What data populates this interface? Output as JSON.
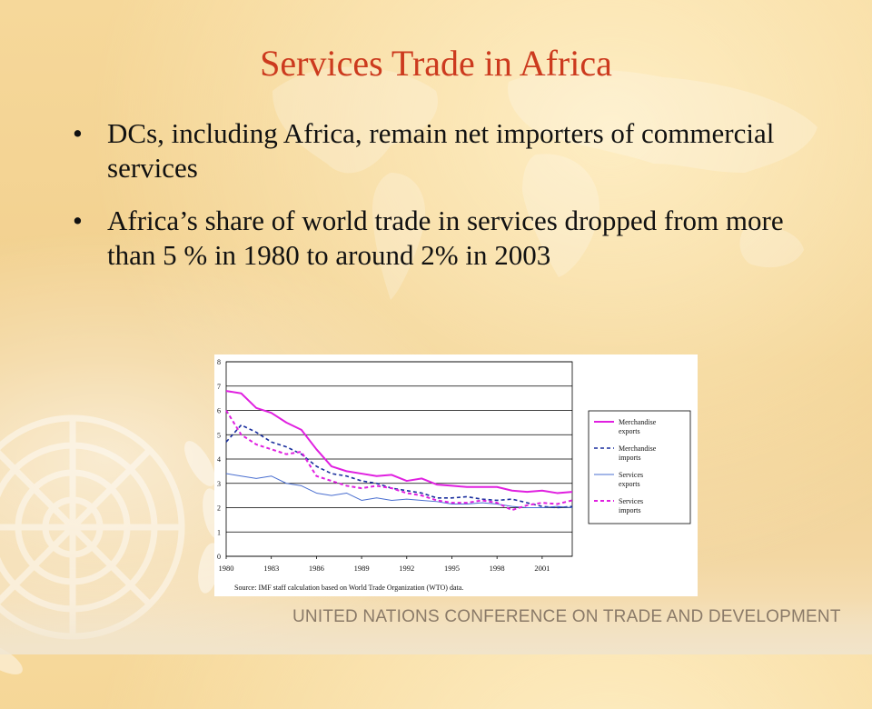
{
  "slide": {
    "title": "Services Trade in Africa",
    "bullets": [
      "DCs, including Africa, remain net importers of commercial services",
      "Africa’s share of world trade in services dropped from more than 5 % in 1980 to around 2% in 2003"
    ],
    "bullet_glyph": "•",
    "footer": "UNITED NATIONS CONFERENCE ON TRADE AND DEVELOPMENT"
  },
  "chart_data": {
    "type": "line",
    "title": "",
    "xlabel": "",
    "ylabel": "",
    "source": "Source: IMF staff calculation based on World Trade Organization (WTO) data.",
    "x": [
      1980,
      1981,
      1982,
      1983,
      1984,
      1985,
      1986,
      1987,
      1988,
      1989,
      1990,
      1991,
      1992,
      1993,
      1994,
      1995,
      1996,
      1997,
      1998,
      1999,
      2000,
      2001,
      2002,
      2003
    ],
    "x_tick_labels": [
      "1980",
      "1983",
      "1986",
      "1989",
      "1992",
      "1995",
      "1998",
      "2001"
    ],
    "x_tick_values": [
      1980,
      1983,
      1986,
      1989,
      1992,
      1995,
      1998,
      2001
    ],
    "ylim": [
      0,
      8
    ],
    "y_ticks": [
      0,
      1,
      2,
      3,
      4,
      5,
      6,
      7,
      8
    ],
    "grid": true,
    "legend_position": "right",
    "series": [
      {
        "name": "Merchandise exports",
        "color": "#e020e0",
        "dash": "solid",
        "width": 2,
        "values": [
          6.8,
          6.7,
          6.1,
          5.9,
          5.5,
          5.2,
          4.4,
          3.7,
          3.5,
          3.4,
          3.3,
          3.35,
          3.1,
          3.2,
          2.95,
          2.9,
          2.85,
          2.85,
          2.85,
          2.7,
          2.65,
          2.7,
          2.6,
          2.65
        ]
      },
      {
        "name": "Merchandise imports",
        "color": "#1a2f9e",
        "dash": "dashed",
        "width": 1.6,
        "values": [
          4.7,
          5.4,
          5.1,
          4.7,
          4.5,
          4.2,
          3.7,
          3.4,
          3.3,
          3.1,
          3.0,
          2.8,
          2.7,
          2.6,
          2.4,
          2.4,
          2.45,
          2.35,
          2.3,
          2.35,
          2.2,
          2.05,
          2.0,
          2.05
        ]
      },
      {
        "name": "Services exports",
        "color": "#4a6fd0",
        "dash": "solid",
        "width": 1,
        "values": [
          3.4,
          3.3,
          3.2,
          3.3,
          3.0,
          2.9,
          2.6,
          2.5,
          2.6,
          2.3,
          2.4,
          2.3,
          2.35,
          2.3,
          2.25,
          2.15,
          2.15,
          2.2,
          2.15,
          2.05,
          2.0,
          2.0,
          2.05,
          2.0
        ]
      },
      {
        "name": "Services imports",
        "color": "#e020e0",
        "dash": "dashed",
        "width": 2,
        "values": [
          6.0,
          5.0,
          4.6,
          4.4,
          4.2,
          4.3,
          3.3,
          3.1,
          2.9,
          2.8,
          2.9,
          2.8,
          2.6,
          2.5,
          2.3,
          2.2,
          2.2,
          2.3,
          2.2,
          1.9,
          2.1,
          2.2,
          2.15,
          2.3
        ]
      }
    ]
  }
}
